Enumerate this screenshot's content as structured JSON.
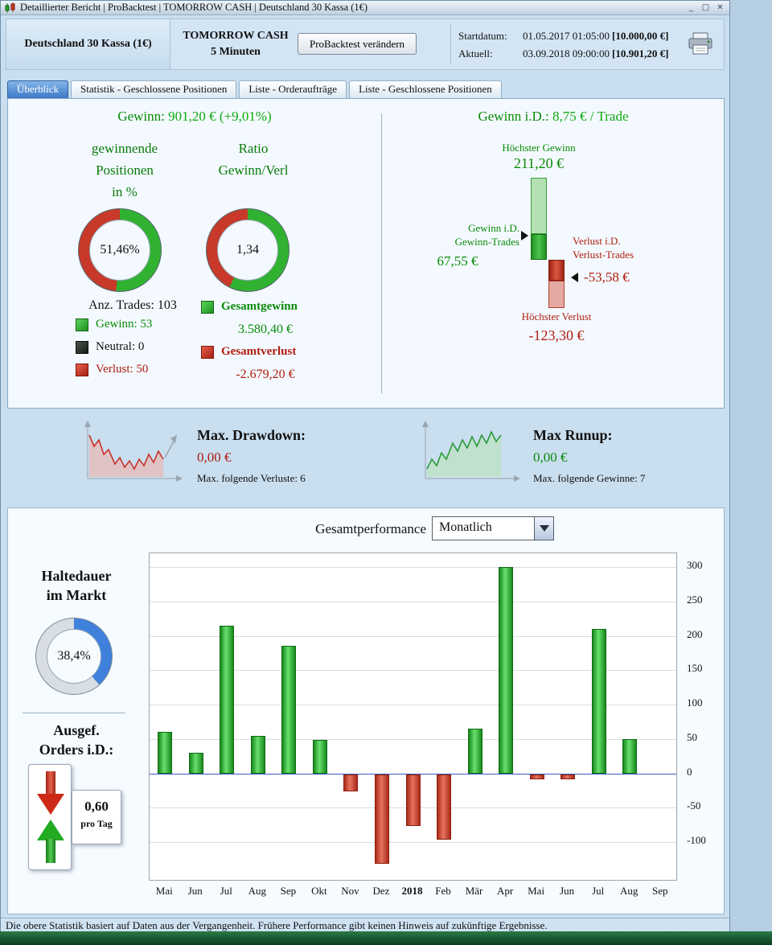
{
  "window": {
    "title": "Detaillierter Bericht | ProBacktest | TOMORROW CASH | Deutschland 30 Kassa (1€)",
    "controls": {
      "minimize": "_",
      "maximize": "□",
      "close": "✕"
    }
  },
  "header": {
    "instrument": "Deutschland 30 Kassa (1€)",
    "system": "TOMORROW CASH",
    "timeframe": "5 Minuten",
    "modify_button": "ProBacktest verändern",
    "start_label": "Startdatum:",
    "start_datetime": "01.05.2017 01:05:00",
    "start_capital": "[10.000,00 €]",
    "current_label": "Aktuell:",
    "current_datetime": "03.09.2018 09:00:00",
    "current_capital": "[10.901,20 €]"
  },
  "tabs": [
    {
      "label": "Überblick",
      "active": true
    },
    {
      "label": "Statistik - Geschlossene Positionen",
      "active": false
    },
    {
      "label": "Liste - Orderaufträge",
      "active": false
    },
    {
      "label": "Liste - Geschlossene Positionen",
      "active": false
    }
  ],
  "overview": {
    "gewinn_label": "Gewinn:",
    "gewinn_value": "901,20 € (+9,01%)",
    "win_donut": {
      "l1": "gewinnende",
      "l2": "Positionen",
      "l3": "in %",
      "value": "51,46%",
      "percent": 51.46
    },
    "ratio_donut": {
      "l1": "Ratio",
      "l2": "Gewinn/Verl",
      "value": "1,34",
      "green_percent": 57.3
    },
    "trades_label": "Anz. Trades: 103",
    "legend": [
      {
        "label": "Gewinn: 53"
      },
      {
        "label": "Neutral: 0"
      },
      {
        "label": "Verlust: 50"
      }
    ],
    "total_win_label": "Gesamtgewinn",
    "total_win_value": "3.580,40 €",
    "total_loss_label": "Gesamtverlust",
    "total_loss_value": "-2.679,20 €",
    "avg_title_label": "Gewinn i.D.:",
    "avg_title_value": "8,75 € / Trade",
    "max_win_label": "Höchster Gewinn",
    "max_win_value": "211,20 €",
    "avg_win_l1": "Gewinn i.D.",
    "avg_win_l2": "Gewinn-Trades",
    "avg_win_value": "67,55 €",
    "avg_loss_l1": "Verlust i.D.",
    "avg_loss_l2": "Verlust-Trades",
    "avg_loss_value": "-53,58 €",
    "max_loss_label": "Höchster Verlust",
    "max_loss_value": "-123,30 €",
    "avg_bars": {
      "max_win": 211.2,
      "avg_win": 67.55,
      "avg_loss": -53.58,
      "max_loss": -123.3
    }
  },
  "drawdown": {
    "label": "Max. Drawdown:",
    "value": "0,00 €",
    "sub": "Max. folgende Verluste: 6"
  },
  "runup": {
    "label": "Max Runup:",
    "value": "0,00 €",
    "sub": "Max. folgende Gewinne: 7"
  },
  "performance": {
    "title": "Gesamtperformance",
    "dropdown_value": "Monatlich",
    "haltedauer": {
      "l1": "Haltedauer",
      "l2": "im Markt",
      "value": "38,4%",
      "percent": 38.4
    },
    "orders": {
      "l1": "Ausgef.",
      "l2": "Orders i.D.:",
      "value": "0,60",
      "unit": "pro Tag"
    }
  },
  "chart_data": {
    "type": "bar",
    "title": "Gesamtperformance",
    "xlabel": "",
    "ylabel": "",
    "categories": [
      "Mai",
      "Jun",
      "Jul",
      "Aug",
      "Sep",
      "Okt",
      "Nov",
      "Dez",
      "2018",
      "Feb",
      "Mär",
      "Apr",
      "Mai",
      "Jun",
      "Jul",
      "Aug",
      "Sep"
    ],
    "values": [
      60,
      30,
      215,
      55,
      185,
      48,
      -25,
      -130,
      -75,
      -95,
      65,
      300,
      -8,
      -8,
      210,
      50,
      0
    ],
    "y_ticks": [
      300,
      250,
      200,
      150,
      100,
      50,
      0,
      -50,
      -100
    ],
    "ylim": [
      -155,
      320
    ],
    "emphasized_category": "2018",
    "grid": true,
    "legend_position": "none"
  },
  "status_bar": {
    "text": "Die obere Statistik basiert auf Daten aus der Vergangenheit. Frühere Performance gibt keinen Hinweis auf zukünftige Ergebnisse."
  },
  "colors": {
    "green_donut": "#30b230",
    "red_donut": "#c8392a",
    "blue": "#3f80dc",
    "donut_track": "#d9dee4",
    "green_text": "#0a8a0a",
    "red_text": "#b01c10",
    "positive_bar": "#2fae2f",
    "negative_bar": "#c63826",
    "zero_line": "#3b5bc0",
    "active_tab": "#3d79c6"
  }
}
